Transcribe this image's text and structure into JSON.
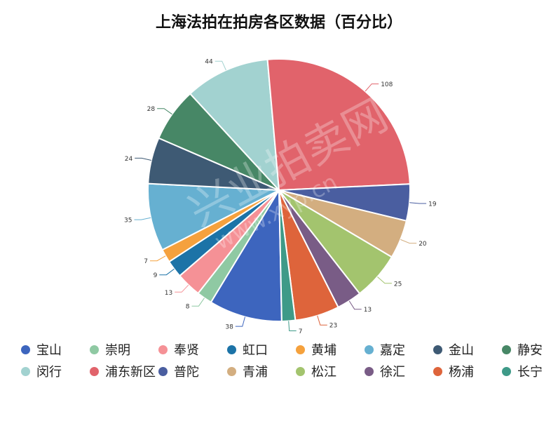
{
  "chart_data": {
    "type": "pie",
    "title": "上海法拍在拍房各区数据（百分比）",
    "slices": [
      {
        "name": "宝山",
        "value": 38,
        "color": "#3d65be"
      },
      {
        "name": "崇明",
        "value": 8,
        "color": "#8fc9a3"
      },
      {
        "name": "奉贤",
        "value": 13,
        "color": "#f59196"
      },
      {
        "name": "虹口",
        "value": 9,
        "color": "#1c73a7"
      },
      {
        "name": "黄埔",
        "value": 7,
        "color": "#f5a13d"
      },
      {
        "name": "嘉定",
        "value": 35,
        "color": "#66b0d1"
      },
      {
        "name": "金山",
        "value": 24,
        "color": "#3e5a74"
      },
      {
        "name": "静安",
        "value": 28,
        "color": "#478766"
      },
      {
        "name": "闵行",
        "value": 44,
        "color": "#a2d2d0"
      },
      {
        "name": "浦东新区",
        "value": 108,
        "color": "#e1636b"
      },
      {
        "name": "普陀",
        "value": 19,
        "color": "#4a5ea0"
      },
      {
        "name": "青浦",
        "value": 20,
        "color": "#d3ae80"
      },
      {
        "name": "松江",
        "value": 25,
        "color": "#a3c46e"
      },
      {
        "name": "徐汇",
        "value": 13,
        "color": "#795c86"
      },
      {
        "name": "杨浦",
        "value": 23,
        "color": "#de643b"
      },
      {
        "name": "长宁",
        "value": 7,
        "color": "#3e9a88"
      }
    ],
    "legend_position": "bottom",
    "label_position": "outside"
  },
  "watermark": {
    "text": "兴业拍卖网",
    "subtext": "www.xyp.cn"
  }
}
